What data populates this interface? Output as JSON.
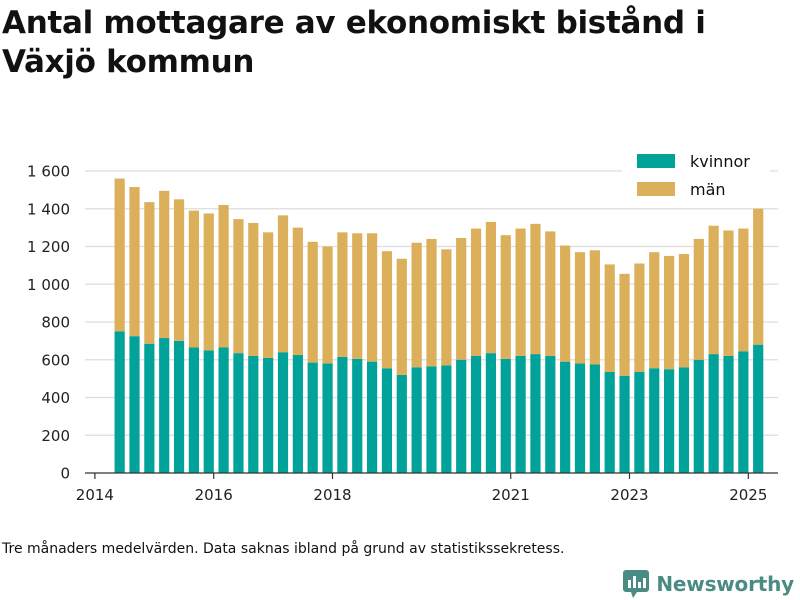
{
  "title": "Antal mottagare av ekonomiskt bistånd i Växjö kommun",
  "footnote": "Tre månaders medelvärden. Data saknas ibland på grund av statistikssekretess.",
  "brand": "Newsworthy",
  "colors": {
    "kvinnor": "#00a29a",
    "man": "#dcaf5b",
    "grid": "#dddddd",
    "axis": "#333333",
    "brand": "#4a8c84"
  },
  "chart_data": {
    "type": "bar",
    "stacked": true,
    "xaxis": {
      "type": "time",
      "range": [
        "2013-11",
        "2025-07"
      ],
      "ticks": [
        {
          "date": "2014-01",
          "label": "2014"
        },
        {
          "date": "2016-01",
          "label": "2016"
        },
        {
          "date": "2018-01",
          "label": "2018"
        },
        {
          "date": "2021-01",
          "label": "2021"
        },
        {
          "date": "2023-01",
          "label": "2023"
        },
        {
          "date": "2025-01",
          "label": "2025"
        }
      ]
    },
    "yaxis": {
      "range": [
        0,
        1600
      ],
      "ticks": [
        {
          "value": 0,
          "label": "0"
        },
        {
          "value": 200,
          "label": "200"
        },
        {
          "value": 400,
          "label": "400"
        },
        {
          "value": 600,
          "label": "600"
        },
        {
          "value": 800,
          "label": "800"
        },
        {
          "value": 1000,
          "label": "1 000"
        },
        {
          "value": 1200,
          "label": "1 200"
        },
        {
          "value": 1400,
          "label": "1 400"
        },
        {
          "value": 1600,
          "label": "1 600"
        }
      ]
    },
    "grid": true,
    "legend_position": "top-right",
    "x": [
      "2014-06",
      "2014-09",
      "2014-12",
      "2015-03",
      "2015-06",
      "2015-09",
      "2015-12",
      "2016-03",
      "2016-06",
      "2016-09",
      "2016-12",
      "2017-03",
      "2017-06",
      "2017-09",
      "2017-12",
      "2018-03",
      "2018-06",
      "2018-09",
      "2018-12",
      "2019-03",
      "2019-06",
      "2019-09",
      "2019-12",
      "2020-03",
      "2020-06",
      "2020-09",
      "2020-12",
      "2021-03",
      "2021-06",
      "2021-09",
      "2021-12",
      "2022-03",
      "2022-06",
      "2022-09",
      "2022-12",
      "2023-03",
      "2023-06",
      "2023-09",
      "2023-12",
      "2024-03",
      "2024-06",
      "2024-09",
      "2024-12",
      "2025-03"
    ],
    "series": [
      {
        "name": "kvinnor",
        "values": [
          750,
          725,
          685,
          715,
          700,
          665,
          650,
          665,
          635,
          620,
          610,
          640,
          625,
          585,
          580,
          615,
          605,
          590,
          555,
          520,
          560,
          565,
          570,
          600,
          620,
          635,
          605,
          620,
          630,
          620,
          590,
          580,
          575,
          535,
          515,
          535,
          555,
          550,
          560,
          600,
          630,
          620,
          645,
          680
        ]
      },
      {
        "name": "män",
        "values": [
          810,
          790,
          750,
          780,
          750,
          725,
          725,
          755,
          710,
          705,
          665,
          725,
          675,
          640,
          620,
          660,
          665,
          680,
          620,
          615,
          660,
          675,
          615,
          645,
          675,
          695,
          655,
          675,
          690,
          660,
          615,
          590,
          605,
          570,
          540,
          575,
          615,
          600,
          600,
          640,
          680,
          665,
          650,
          720
        ]
      }
    ]
  }
}
